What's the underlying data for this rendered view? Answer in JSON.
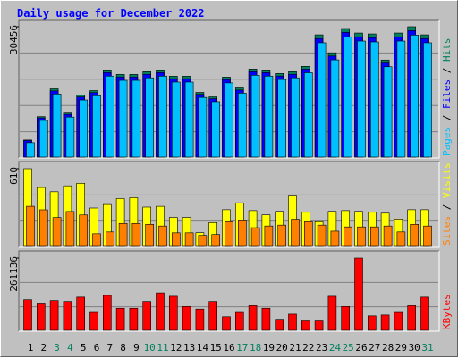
{
  "title": "Daily usage for December 2022",
  "chart_data": [
    {
      "type": "bar",
      "series": [
        {
          "name": "Hits",
          "color": "#00805c",
          "values": [
            4172,
            9596,
            16062,
            10430,
            14602,
            15645,
            20443,
            19400,
            19400,
            20026,
            20443,
            18983,
            18983,
            15228,
            14185,
            18774,
            16271,
            20652,
            20443,
            19609,
            20026,
            21277,
            28578,
            24406,
            30039,
            28996,
            28787,
            22738,
            28996,
            30456,
            28578
          ]
        },
        {
          "name": "Files",
          "color": "#0000ff",
          "values": [
            4050,
            9310,
            15580,
            10120,
            14160,
            15180,
            19830,
            18820,
            18820,
            19430,
            19830,
            18410,
            18410,
            14770,
            13760,
            18210,
            15780,
            20030,
            19830,
            19020,
            19430,
            20640,
            27720,
            23670,
            29140,
            28130,
            27920,
            22060,
            28130,
            29540,
            27720
          ]
        },
        {
          "name": "Pages",
          "color": "#00c0ff",
          "values": [
            3960,
            9120,
            15260,
            9910,
            13870,
            14860,
            19420,
            18430,
            18430,
            19020,
            19420,
            18030,
            18030,
            14470,
            13480,
            17840,
            15460,
            19620,
            19420,
            18630,
            19020,
            20210,
            27150,
            23190,
            28540,
            27550,
            27350,
            21600,
            27550,
            28930,
            27150
          ]
        }
      ],
      "legend_separator": " / ",
      "ylim": [
        0,
        30456
      ],
      "yticks": [
        30456
      ]
    },
    {
      "type": "bar",
      "series": [
        {
          "name": "Visits",
          "color": "#ffff00",
          "values": [
            610,
            464,
            431,
            477,
            497,
            305,
            332,
            378,
            385,
            312,
            318,
            232,
            232,
            113,
            192,
            292,
            345,
            285,
            252,
            279,
            398,
            272,
            199,
            279,
            285,
            279,
            272,
            265,
            219,
            292,
            292
          ]
        },
        {
          "name": "Sites",
          "color": "#ff8000",
          "values": [
            332,
            305,
            245,
            292,
            265,
            119,
            133,
            199,
            199,
            192,
            179,
            126,
            126,
            106,
            113,
            212,
            219,
            166,
            179,
            186,
            232,
            212,
            186,
            139,
            172,
            172,
            172,
            179,
            133,
            192,
            179
          ]
        }
      ],
      "legend_separator": " / ",
      "ylim": [
        0,
        610
      ],
      "yticks": [
        610
      ]
    },
    {
      "type": "bar",
      "series": [
        {
          "name": "KBytes",
          "color": "#ff0000",
          "values": [
            112350,
            97168,
            109314,
            106278,
            121460,
            66803,
            127533,
            81986,
            81986,
            106278,
            136643,
            124497,
            88059,
            78949,
            106278,
            51621,
            66803,
            91095,
            81986,
            42511,
            60730,
            36438,
            36438,
            124497,
            88059,
            261136,
            54657,
            57694,
            66803,
            91095,
            121460
          ]
        }
      ],
      "legend_separator": " / ",
      "ylim": [
        0,
        261136
      ],
      "yticks": [
        261136
      ],
      "categories": [
        "1",
        "2",
        "3",
        "4",
        "5",
        "6",
        "7",
        "8",
        "9",
        "10",
        "11",
        "12",
        "13",
        "14",
        "15",
        "16",
        "17",
        "18",
        "19",
        "20",
        "21",
        "22",
        "23",
        "24",
        "25",
        "26",
        "27",
        "28",
        "29",
        "30",
        "31"
      ],
      "category_colors": [
        "#000000",
        "#000000",
        "#00805c",
        "#00805c",
        "#000000",
        "#000000",
        "#000000",
        "#000000",
        "#000000",
        "#00805c",
        "#00805c",
        "#000000",
        "#000000",
        "#000000",
        "#000000",
        "#000000",
        "#00805c",
        "#00805c",
        "#000000",
        "#000000",
        "#000000",
        "#000000",
        "#000000",
        "#00805c",
        "#00805c",
        "#000000",
        "#000000",
        "#000000",
        "#000000",
        "#000000",
        "#00805c"
      ]
    }
  ]
}
